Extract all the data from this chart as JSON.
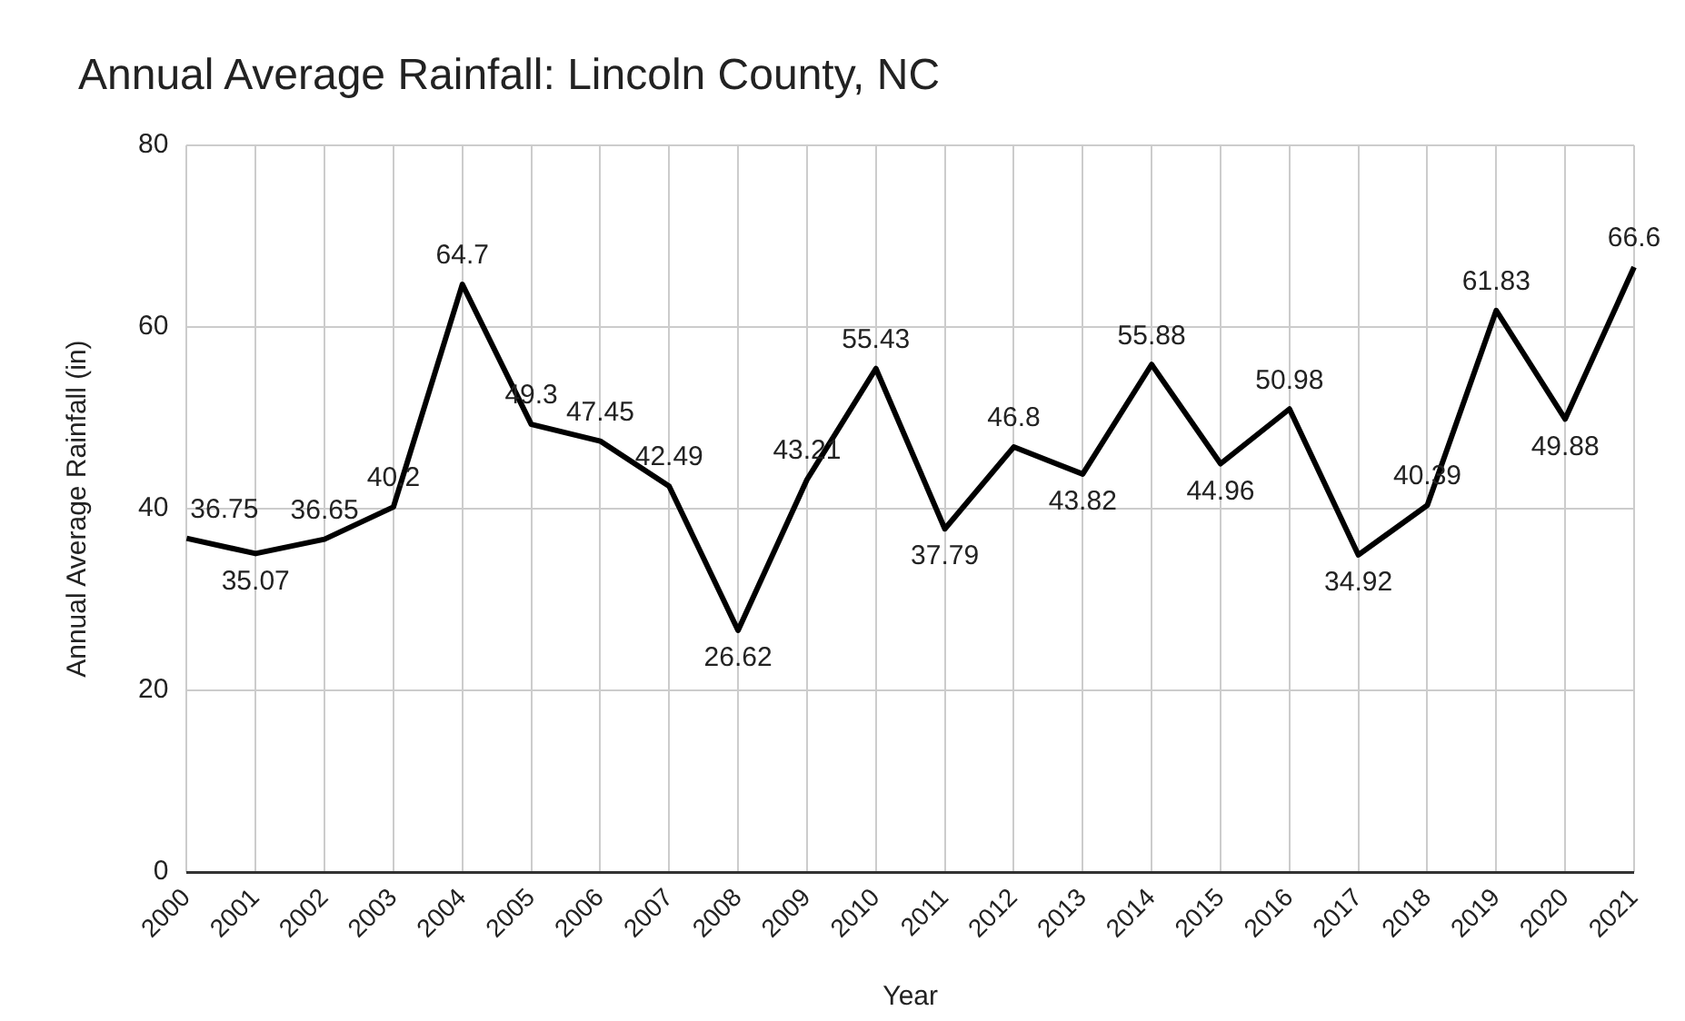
{
  "chart_data": {
    "type": "line",
    "title": "Annual Average Rainfall: Lincoln County, NC",
    "xlabel": "Year",
    "ylabel": "Annual Average Rainfall (in)",
    "categories": [
      "2000",
      "2001",
      "2002",
      "2003",
      "2004",
      "2005",
      "2006",
      "2007",
      "2008",
      "2009",
      "2010",
      "2011",
      "2012",
      "2013",
      "2014",
      "2015",
      "2016",
      "2017",
      "2018",
      "2019",
      "2020",
      "2021"
    ],
    "series": [
      {
        "color": "#000000",
        "values": [
          36.75,
          35.07,
          36.65,
          40.2,
          64.7,
          49.3,
          47.45,
          42.49,
          26.62,
          43.21,
          55.43,
          37.79,
          46.8,
          43.82,
          55.88,
          44.96,
          50.98,
          34.92,
          40.39,
          61.83,
          49.88,
          66.6
        ]
      }
    ],
    "ylim": [
      0,
      80
    ],
    "yticks": [
      0,
      20,
      40,
      60,
      80
    ],
    "grid": true,
    "legend": false,
    "marker": "none",
    "line_style": "solid",
    "data_labels": true
  }
}
